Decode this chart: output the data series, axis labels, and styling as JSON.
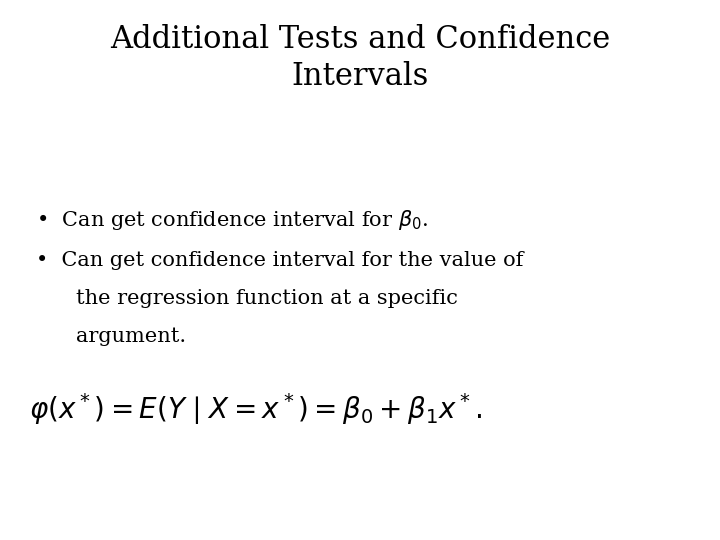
{
  "title_line1": "Additional Tests and Confidence",
  "title_line2": "Intervals",
  "bullet1": "Can get confidence interval for $\\beta_0$.",
  "bullet2_line1": "Can get confidence interval for the value of",
  "bullet2_line2": "the regression function at a specific",
  "bullet2_line3": "argument.",
  "formula": "$\\varphi(x^*) = E(Y \\mid X = x^*) = \\beta_0 + \\beta_1 x^*.$",
  "bg_color": "#ffffff",
  "text_color": "#000000",
  "title_fontsize": 22,
  "bullet_fontsize": 15,
  "formula_fontsize": 20
}
